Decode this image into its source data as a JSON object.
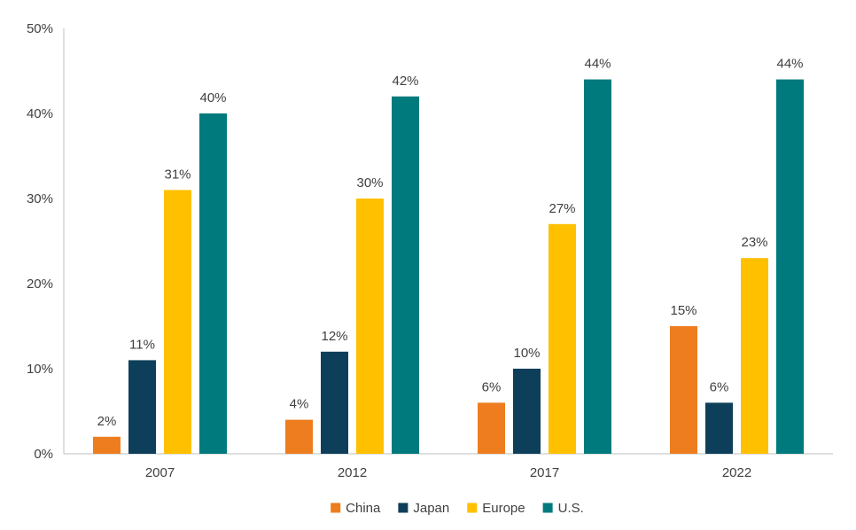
{
  "chart_data": {
    "type": "bar",
    "title": "",
    "xlabel": "",
    "ylabel": "",
    "categories": [
      "2007",
      "2012",
      "2017",
      "2022"
    ],
    "series": [
      {
        "name": "China",
        "color": "#ED7D1F",
        "values": [
          2,
          4,
          6,
          15
        ]
      },
      {
        "name": "Japan",
        "color": "#0D3F5A",
        "values": [
          11,
          12,
          10,
          6
        ]
      },
      {
        "name": "Europe",
        "color": "#FFC000",
        "values": [
          31,
          30,
          27,
          23
        ]
      },
      {
        "name": "U.S.",
        "color": "#007A7C",
        "values": [
          40,
          42,
          44,
          44
        ]
      }
    ],
    "ylim": [
      0,
      50
    ],
    "yticks": [
      "0%",
      "10%",
      "20%",
      "30%",
      "40%",
      "50%"
    ],
    "ytick_values": [
      0,
      10,
      20,
      30,
      40,
      50
    ],
    "value_suffix": "%",
    "legend_position": "bottom",
    "grid": false
  }
}
